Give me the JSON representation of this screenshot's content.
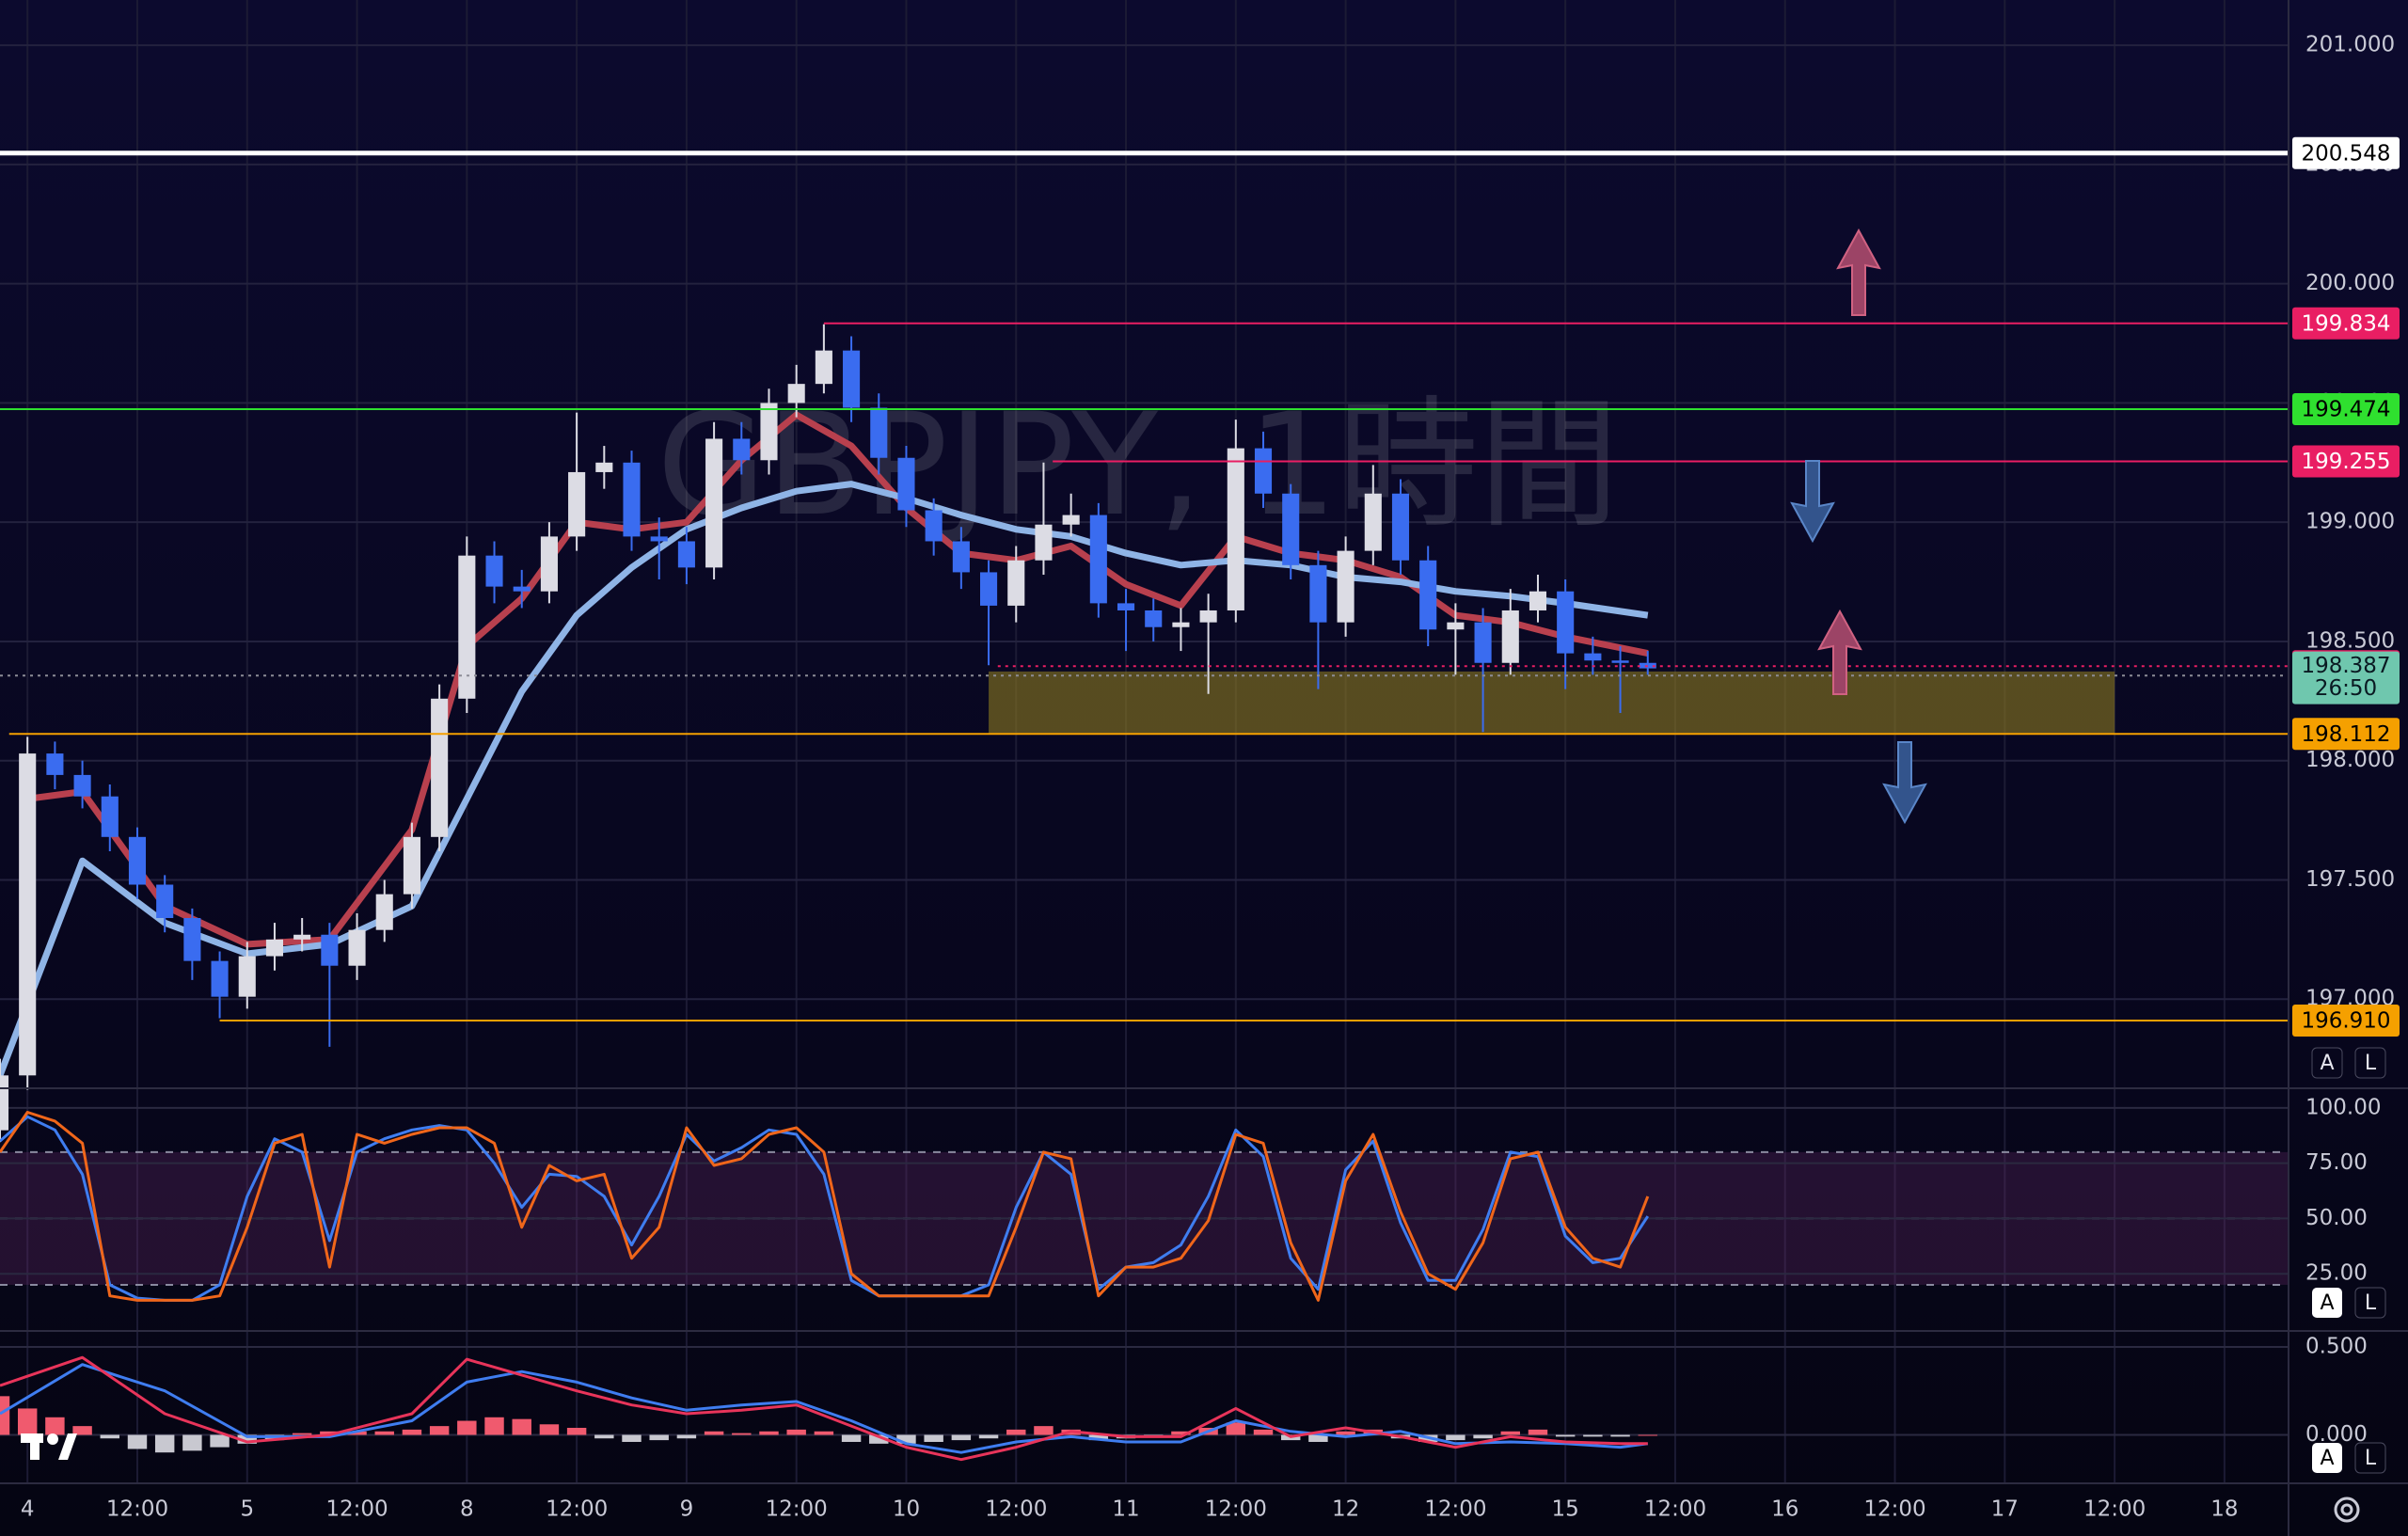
{
  "chart_data": [
    {
      "type": "candlestick",
      "watermark": "GBPJPY, 1時間",
      "x": [
        -3,
        0,
        3,
        6,
        9,
        12,
        15,
        18,
        21,
        24,
        27,
        30,
        33,
        36,
        39,
        42,
        45,
        48,
        51,
        54,
        57,
        60,
        63,
        66,
        69,
        72,
        75,
        78,
        81,
        84,
        87,
        90,
        93,
        96,
        99,
        102,
        105,
        108,
        111,
        114,
        117,
        120,
        123,
        126,
        129,
        132,
        135,
        138,
        141,
        144,
        147,
        150,
        153,
        156,
        159,
        162,
        165,
        168,
        171,
        174,
        177
      ],
      "open": [
        196.45,
        196.68,
        198.03,
        197.94,
        197.85,
        197.68,
        197.48,
        197.34,
        197.16,
        197.01,
        197.18,
        197.25,
        197.27,
        197.14,
        197.29,
        197.44,
        197.68,
        198.26,
        198.86,
        198.73,
        198.71,
        198.94,
        199.21,
        199.25,
        198.94,
        198.92,
        198.81,
        199.35,
        199.26,
        199.5,
        199.58,
        199.72,
        199.48,
        199.27,
        199.05,
        198.92,
        198.79,
        198.65,
        198.84,
        198.99,
        199.03,
        198.66,
        198.63,
        198.56,
        198.58,
        198.63,
        199.31,
        199.12,
        198.82,
        198.58,
        198.88,
        199.12,
        198.84,
        198.55,
        198.58,
        198.41,
        198.63,
        198.71,
        198.45,
        198.42,
        198.41
      ],
      "high": [
        196.75,
        198.1,
        198.08,
        198.0,
        197.9,
        197.72,
        197.52,
        197.38,
        197.2,
        197.24,
        197.32,
        197.34,
        197.32,
        197.36,
        197.5,
        197.74,
        198.32,
        198.94,
        198.92,
        198.8,
        199.0,
        199.46,
        199.32,
        199.3,
        199.02,
        198.98,
        199.42,
        199.42,
        199.56,
        199.66,
        199.83,
        199.78,
        199.54,
        199.32,
        199.1,
        198.98,
        198.84,
        198.9,
        199.25,
        199.12,
        199.08,
        198.72,
        198.68,
        198.64,
        198.7,
        199.43,
        199.38,
        199.16,
        198.88,
        198.94,
        199.24,
        199.18,
        198.9,
        198.66,
        198.64,
        198.72,
        198.78,
        198.76,
        198.52,
        198.48,
        198.46
      ],
      "low": [
        196.4,
        196.62,
        197.88,
        197.8,
        197.62,
        197.42,
        197.28,
        197.08,
        196.92,
        196.96,
        197.12,
        197.2,
        196.8,
        197.08,
        197.24,
        197.38,
        197.62,
        198.2,
        198.66,
        198.64,
        198.66,
        198.88,
        199.14,
        198.88,
        198.76,
        198.74,
        198.76,
        199.2,
        199.2,
        199.44,
        199.54,
        199.42,
        199.2,
        198.98,
        198.86,
        198.72,
        198.4,
        198.58,
        198.78,
        198.94,
        198.6,
        198.46,
        198.5,
        198.46,
        198.28,
        198.58,
        199.06,
        198.76,
        198.3,
        198.52,
        198.82,
        198.78,
        198.48,
        198.36,
        198.12,
        198.36,
        198.58,
        198.3,
        198.36,
        198.2,
        198.36
      ],
      "close": [
        196.68,
        198.03,
        197.94,
        197.85,
        197.68,
        197.48,
        197.34,
        197.16,
        197.01,
        197.18,
        197.25,
        197.27,
        197.14,
        197.29,
        197.44,
        197.68,
        198.26,
        198.86,
        198.73,
        198.71,
        198.94,
        199.21,
        199.25,
        198.94,
        198.92,
        198.81,
        199.35,
        199.26,
        199.5,
        199.58,
        199.72,
        199.48,
        199.27,
        199.05,
        198.92,
        198.79,
        198.65,
        198.84,
        198.99,
        199.03,
        198.66,
        198.63,
        198.56,
        198.58,
        198.63,
        199.31,
        199.12,
        198.82,
        198.58,
        198.88,
        199.12,
        198.84,
        198.55,
        198.58,
        198.41,
        198.63,
        198.71,
        198.45,
        198.42,
        198.41,
        198.387
      ],
      "up_color": "#dcdce4",
      "down_color": "#3a6cf0",
      "averages": [
        {
          "color": "#b8404e",
          "x": [
            0,
            6,
            15,
            24,
            33,
            42,
            48,
            54,
            60,
            66,
            72,
            78,
            84,
            90,
            96,
            102,
            108,
            114,
            120,
            126,
            132,
            138,
            144,
            150,
            156,
            162,
            168,
            177
          ],
          "values": [
            197.84,
            197.87,
            197.39,
            197.23,
            197.25,
            197.71,
            198.48,
            198.68,
            199.0,
            198.97,
            199.0,
            199.26,
            199.45,
            199.32,
            199.06,
            198.87,
            198.84,
            198.9,
            198.74,
            198.65,
            198.94,
            198.87,
            198.84,
            198.77,
            198.61,
            198.58,
            198.52,
            198.45
          ]
        },
        {
          "color": "#8fb4e6",
          "x": [
            -3,
            6,
            15,
            24,
            33,
            42,
            48,
            54,
            60,
            66,
            72,
            78,
            84,
            90,
            96,
            102,
            108,
            114,
            120,
            126,
            132,
            138,
            144,
            150,
            156,
            162,
            168,
            177
          ],
          "values": [
            196.68,
            197.58,
            197.32,
            197.19,
            197.23,
            197.39,
            197.84,
            198.29,
            198.61,
            198.81,
            198.97,
            199.06,
            199.13,
            199.16,
            199.1,
            199.03,
            198.97,
            198.94,
            198.87,
            198.82,
            198.84,
            198.82,
            198.77,
            198.75,
            198.71,
            198.69,
            198.66,
            198.61
          ]
        }
      ],
      "levels": [
        {
          "price": 200.548,
          "color": "#ffffff",
          "text_color": "#000000",
          "start": -3,
          "width": 5
        },
        {
          "price": 199.834,
          "color": "#e91e63",
          "text_color": "#ffffff",
          "start": 87,
          "width": 2
        },
        {
          "price": 199.474,
          "color": "#2fe02f",
          "text_color": "#000000",
          "start": -3,
          "width": 2
        },
        {
          "price": 199.255,
          "color": "#e91e63",
          "text_color": "#ffffff",
          "start": 112,
          "width": 2
        },
        {
          "price": 198.396,
          "color": "#e91e63",
          "text_color": "#ffffff",
          "start": 106,
          "width": 2,
          "dash": true
        },
        {
          "price": 198.357,
          "color": "#8c8c96",
          "text_color": "#ffffff",
          "start": -3,
          "width": 2,
          "dash": true
        },
        {
          "price": 198.112,
          "color": "#f5a000",
          "text_color": "#000000",
          "start": -2,
          "width": 2
        },
        {
          "price": {
            "value": 196.91,
            "label": "196.910"
          },
          "color": "#f5a000",
          "text_color": "#000000",
          "start": 21,
          "width": 2
        }
      ],
      "zone": {
        "top": 198.374,
        "bottom": 198.112,
        "start": 105,
        "end": 228,
        "color": "#8c7a1f"
      },
      "last_price": 198.387,
      "countdown": "26:50",
      "last_color": "#6fc7ae",
      "xlim": [
        -3,
        247
      ],
      "xticks": [
        {
          "value": 0,
          "label": "4"
        },
        {
          "value": 12,
          "label": "12:00"
        },
        {
          "value": 24,
          "label": "5"
        },
        {
          "value": 36,
          "label": "12:00"
        },
        {
          "value": 48,
          "label": "8"
        },
        {
          "value": 60,
          "label": "12:00"
        },
        {
          "value": 72,
          "label": "9"
        },
        {
          "value": 84,
          "label": "12:00"
        },
        {
          "value": 96,
          "label": "10"
        },
        {
          "value": 108,
          "label": "12:00"
        },
        {
          "value": 120,
          "label": "11"
        },
        {
          "value": 132,
          "label": "12:00"
        },
        {
          "value": 144,
          "label": "12"
        },
        {
          "value": 156,
          "label": "12:00"
        },
        {
          "value": 168,
          "label": "15"
        },
        {
          "value": 180,
          "label": "12:00"
        },
        {
          "value": 192,
          "label": "16"
        },
        {
          "value": 204,
          "label": "12:00"
        },
        {
          "value": 216,
          "label": "17"
        },
        {
          "value": 228,
          "label": "12:00"
        },
        {
          "value": 240,
          "label": "18"
        }
      ],
      "ylim": [
        196.63,
        201.19
      ],
      "yticks": [
        {
          "value": 197,
          "label": "197.000"
        },
        {
          "value": 197.5,
          "label": "197.500"
        },
        {
          "value": 198,
          "label": "198.000"
        },
        {
          "value": 198.5,
          "label": "198.500"
        },
        {
          "value": 199,
          "label": "199.000"
        },
        {
          "value": 199.5,
          "label": "199.500"
        },
        {
          "value": 200,
          "label": "200.000"
        },
        {
          "value": 200.5,
          "label": "200.500"
        },
        {
          "value": 201,
          "label": "201.000"
        }
      ],
      "grid": true
    },
    {
      "type": "stochastic",
      "x": [
        -3,
        0,
        3,
        6,
        9,
        12,
        15,
        18,
        21,
        24,
        27,
        30,
        33,
        36,
        39,
        42,
        45,
        48,
        51,
        54,
        57,
        60,
        63,
        66,
        69,
        72,
        75,
        78,
        81,
        84,
        87,
        90,
        93,
        96,
        99,
        102,
        105,
        108,
        111,
        114,
        117,
        120,
        123,
        126,
        129,
        132,
        135,
        138,
        141,
        144,
        147,
        150,
        153,
        156,
        159,
        162,
        165,
        168,
        171,
        174,
        177
      ],
      "series": [
        {
          "color": "#3f7df0",
          "values": [
            85,
            96,
            90,
            70,
            20,
            14,
            13,
            13,
            20,
            60,
            86,
            80,
            40,
            80,
            86,
            90,
            92,
            90,
            75,
            55,
            70,
            69,
            60,
            38,
            60,
            88,
            76,
            82,
            90,
            88,
            70,
            22,
            15,
            15,
            15,
            15,
            20,
            55,
            80,
            70,
            18,
            28,
            30,
            38,
            60,
            90,
            78,
            32,
            18,
            72,
            85,
            48,
            22,
            22,
            45,
            80,
            78,
            42,
            30,
            32,
            51
          ]
        },
        {
          "color": "#f0661a",
          "values": [
            80,
            98,
            94,
            84,
            15,
            13,
            13,
            13,
            15,
            46,
            84,
            88,
            28,
            88,
            84,
            88,
            91,
            91,
            84,
            46,
            74,
            67,
            70,
            32,
            46,
            91,
            74,
            77,
            88,
            91,
            80,
            25,
            15,
            15,
            15,
            15,
            15,
            46,
            80,
            77,
            15,
            28,
            28,
            32,
            49,
            88,
            84,
            39,
            13,
            67,
            88,
            53,
            25,
            18,
            39,
            77,
            80,
            46,
            32,
            28,
            60
          ]
        }
      ],
      "ylim": [
        0,
        108
      ],
      "yticks": [
        {
          "value": 25,
          "label": "25.00"
        },
        {
          "value": 50,
          "label": "50.00"
        },
        {
          "value": 75,
          "label": "75.00"
        },
        {
          "value": 100,
          "label": "100.00"
        }
      ],
      "bands": [
        20,
        80
      ],
      "midline": 50,
      "band_color": "#6a2a6a"
    },
    {
      "type": "macd",
      "x": [
        -3,
        6,
        15,
        24,
        33,
        42,
        48,
        54,
        60,
        66,
        72,
        78,
        84,
        90,
        96,
        102,
        108,
        114,
        120,
        126,
        132,
        138,
        144,
        150,
        156,
        162,
        168,
        174,
        177
      ],
      "series": [
        {
          "color": "#3f7df0",
          "values": [
            0.12,
            0.4,
            0.25,
            -0.01,
            -0.01,
            0.08,
            0.3,
            0.36,
            0.3,
            0.21,
            0.14,
            0.17,
            0.19,
            0.08,
            -0.05,
            -0.1,
            -0.04,
            -0.01,
            -0.04,
            -0.04,
            0.08,
            0.02,
            -0.01,
            0.02,
            -0.05,
            -0.04,
            -0.05,
            -0.07,
            -0.05
          ]
        },
        {
          "color": "#e8345a",
          "values": [
            0.28,
            0.44,
            0.12,
            -0.04,
            0,
            0.12,
            0.43,
            0.34,
            0.25,
            0.17,
            0.12,
            0.14,
            0.17,
            0.05,
            -0.07,
            -0.14,
            -0.07,
            0.02,
            -0.01,
            -0.01,
            0.15,
            -0.01,
            0.04,
            -0.01,
            -0.07,
            -0.01,
            -0.04,
            -0.05,
            -0.05
          ]
        }
      ],
      "histogram": {
        "up_color": "#f05a6e",
        "down_color": "#c8c8d0",
        "x": [
          -3,
          0,
          3,
          6,
          9,
          12,
          15,
          18,
          21,
          24,
          27,
          30,
          33,
          36,
          39,
          42,
          45,
          48,
          51,
          54,
          57,
          60,
          63,
          66,
          69,
          72,
          75,
          78,
          81,
          84,
          87,
          90,
          93,
          96,
          99,
          102,
          105,
          108,
          111,
          114,
          117,
          120,
          123,
          126,
          129,
          132,
          135,
          138,
          141,
          144,
          147,
          150,
          153,
          156,
          159,
          162,
          165,
          168,
          171,
          174,
          177
        ],
        "values": [
          0.22,
          0.15,
          0.1,
          0.05,
          -0.02,
          -0.08,
          -0.1,
          -0.09,
          -0.07,
          -0.05,
          -0.03,
          0.01,
          0.02,
          0.02,
          0.02,
          0.03,
          0.05,
          0.08,
          0.1,
          0.09,
          0.06,
          0.04,
          -0.02,
          -0.04,
          -0.03,
          -0.02,
          0.02,
          0.01,
          0.02,
          0.03,
          0.02,
          -0.04,
          -0.05,
          -0.05,
          -0.04,
          -0.03,
          -0.02,
          0.03,
          0.05,
          0.03,
          -0.03,
          -0.02,
          -0.01,
          0.02,
          0.04,
          0.07,
          0.03,
          -0.03,
          -0.04,
          0.02,
          0.03,
          -0.02,
          -0.04,
          -0.03,
          -0.02,
          0.02,
          0.03,
          -0.01,
          -0.01,
          -0.01,
          0
        ]
      },
      "ylim": [
        -0.27,
        0.58
      ],
      "yticks": [
        {
          "value": 0,
          "label": "0.000"
        },
        {
          "value": 0.5,
          "label": "0.500"
        }
      ]
    }
  ],
  "ui": {
    "auto": "A",
    "log": "L"
  }
}
